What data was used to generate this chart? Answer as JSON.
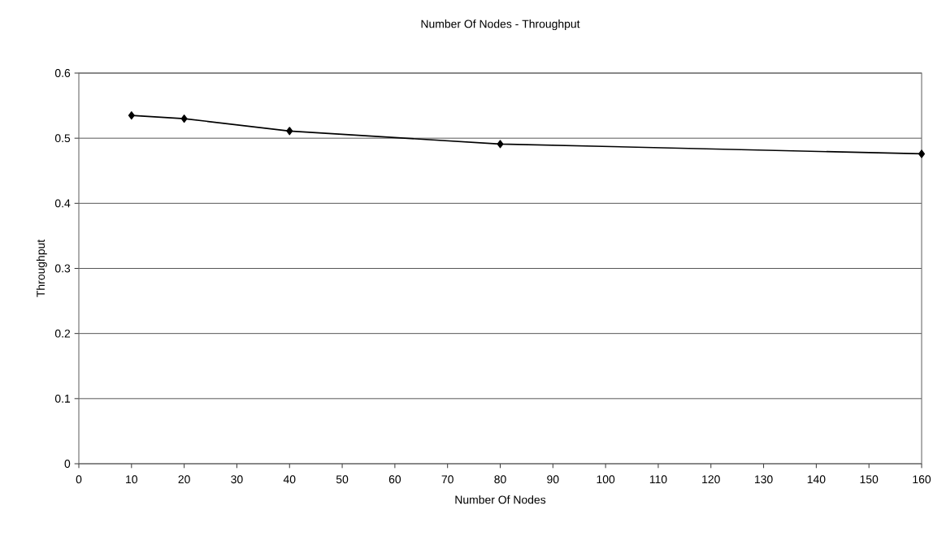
{
  "chart_data": {
    "type": "line",
    "title": "Number Of Nodes -  Throughput",
    "xlabel": "Number Of Nodes",
    "ylabel": "Throughput",
    "x": [
      10,
      20,
      40,
      80,
      160
    ],
    "series": [
      {
        "color": "#000000",
        "values": [
          0.535,
          0.53,
          0.511,
          0.491,
          0.476
        ]
      }
    ],
    "xlim": [
      0,
      160
    ],
    "xticks": [
      0,
      10,
      20,
      30,
      40,
      50,
      60,
      70,
      80,
      90,
      100,
      110,
      120,
      130,
      140,
      150,
      160
    ],
    "ylim": [
      0,
      0.6
    ],
    "yticks": [
      0,
      0.1,
      0.2,
      0.3,
      0.4,
      0.5,
      0.6
    ],
    "grid": "y",
    "marker": "diamond",
    "line_style": "solid"
  }
}
